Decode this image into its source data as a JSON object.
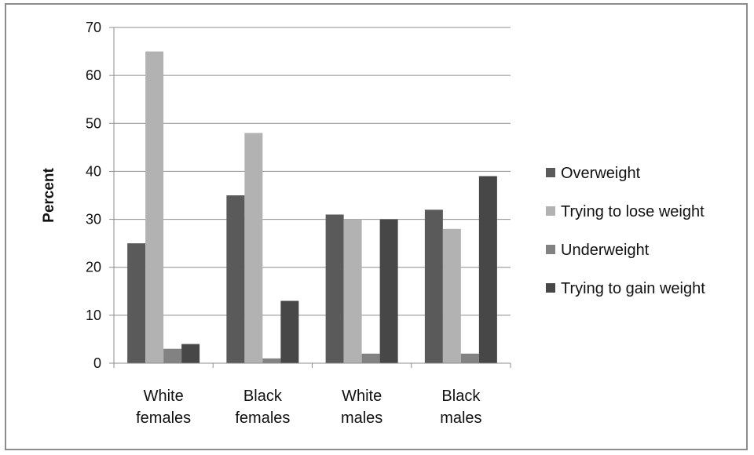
{
  "chart_data": {
    "type": "bar",
    "categories": [
      [
        "White",
        "females"
      ],
      [
        "Black",
        "females"
      ],
      [
        "White",
        "males"
      ],
      [
        "Black",
        "males"
      ]
    ],
    "series": [
      {
        "name": "Overweight",
        "color": "#5a5a5a",
        "values": [
          25,
          35,
          31,
          32
        ]
      },
      {
        "name": "Trying to lose weight",
        "color": "#b2b2b2",
        "values": [
          65,
          48,
          30,
          28
        ]
      },
      {
        "name": "Underweight",
        "color": "#828282",
        "values": [
          3,
          1,
          2,
          2
        ]
      },
      {
        "name": "Trying to gain weight",
        "color": "#474747",
        "values": [
          4,
          13,
          30,
          39
        ]
      }
    ],
    "ylabel": "Percent",
    "ylim": [
      0,
      70
    ],
    "yticks": [
      0,
      10,
      20,
      30,
      40,
      50,
      60,
      70
    ],
    "grid": true,
    "legend_position": "right"
  }
}
